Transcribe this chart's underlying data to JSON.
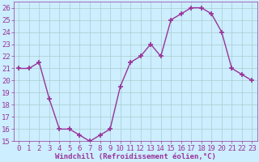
{
  "x": [
    0,
    1,
    2,
    3,
    4,
    5,
    6,
    7,
    8,
    9,
    10,
    11,
    12,
    13,
    14,
    15,
    16,
    17,
    18,
    19,
    20,
    21,
    22,
    23
  ],
  "y": [
    21,
    21,
    21.5,
    18.5,
    16,
    16,
    15.5,
    15,
    15.5,
    16,
    19.5,
    21.5,
    22,
    23,
    22,
    25,
    25.5,
    26,
    26,
    25.5,
    24,
    21,
    20.5,
    20
  ],
  "line_color": "#993399",
  "marker": "+",
  "marker_size": 4,
  "bg_color": "#cceeff",
  "grid_color": "#aacccc",
  "xlabel": "Windchill (Refroidissement éolien,°C)",
  "ylim": [
    15,
    26.5
  ],
  "xlim": [
    -0.5,
    23.5
  ],
  "yticks": [
    15,
    16,
    17,
    18,
    19,
    20,
    21,
    22,
    23,
    24,
    25,
    26
  ],
  "xticks": [
    0,
    1,
    2,
    3,
    4,
    5,
    6,
    7,
    8,
    9,
    10,
    11,
    12,
    13,
    14,
    15,
    16,
    17,
    18,
    19,
    20,
    21,
    22,
    23
  ],
  "line_width": 1.0,
  "tick_fontsize": 6.5,
  "xlabel_fontsize": 6.5
}
